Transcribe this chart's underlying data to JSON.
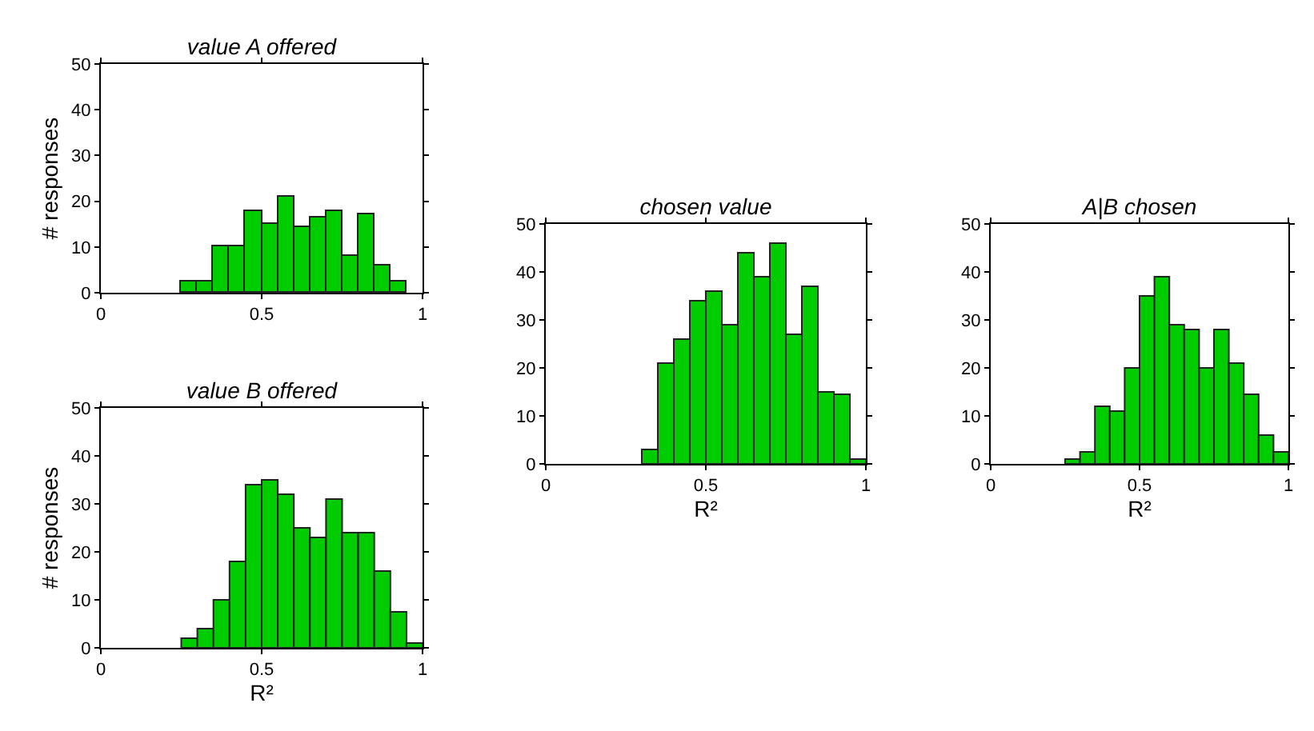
{
  "chart_data": [
    {
      "type": "histogram",
      "title": "value A offered",
      "ylabel": "# responses",
      "bins": [
        0,
        0.05,
        0.1,
        0.15,
        0.2,
        0.25,
        0.3,
        0.35,
        0.4,
        0.45,
        0.5,
        0.55,
        0.6,
        0.65,
        0.7,
        0.75,
        0.8,
        0.85,
        0.9,
        0.95,
        1
      ],
      "values": [
        0,
        0,
        0,
        0,
        0,
        2.5,
        2.5,
        10,
        10,
        18,
        15,
        21,
        14.5,
        16.5,
        18,
        8,
        17,
        6,
        2.5,
        0
      ],
      "color": "#00cc00",
      "xlim": [
        0,
        1
      ],
      "xticks": [
        0,
        0.5,
        1
      ],
      "ylim": [
        0,
        50
      ],
      "yticks": [
        0,
        10,
        20,
        30,
        40,
        50
      ]
    },
    {
      "type": "histogram",
      "title": "value B offered",
      "ylabel": "# responses",
      "xlabel": "R²",
      "bins": [
        0,
        0.05,
        0.1,
        0.15,
        0.2,
        0.25,
        0.3,
        0.35,
        0.4,
        0.45,
        0.5,
        0.55,
        0.6,
        0.65,
        0.7,
        0.75,
        0.8,
        0.85,
        0.9,
        0.95,
        1
      ],
      "values": [
        0,
        0,
        0,
        0,
        0,
        2,
        4,
        10,
        18,
        34,
        35,
        32,
        25,
        23,
        31,
        24,
        24,
        16,
        7.5,
        1
      ],
      "color": "#00cc00",
      "xlim": [
        0,
        1
      ],
      "xticks": [
        0,
        0.5,
        1
      ],
      "ylim": [
        0,
        50
      ],
      "yticks": [
        0,
        10,
        20,
        30,
        40,
        50
      ]
    },
    {
      "type": "histogram",
      "title": "chosen value",
      "xlabel": "R²",
      "bins": [
        0,
        0.05,
        0.1,
        0.15,
        0.2,
        0.25,
        0.3,
        0.35,
        0.4,
        0.45,
        0.5,
        0.55,
        0.6,
        0.65,
        0.7,
        0.75,
        0.8,
        0.85,
        0.9,
        0.95,
        1
      ],
      "values": [
        0,
        0,
        0,
        0,
        0,
        0,
        3,
        21,
        26,
        34,
        36,
        29,
        44,
        39,
        46,
        27,
        37,
        15,
        14.5,
        1
      ],
      "color": "#00cc00",
      "xlim": [
        0,
        1
      ],
      "xticks": [
        0,
        0.5,
        1
      ],
      "ylim": [
        0,
        50
      ],
      "yticks": [
        0,
        10,
        20,
        30,
        40,
        50
      ]
    },
    {
      "type": "histogram",
      "title": "A|B chosen",
      "xlabel": "R²",
      "bins": [
        0,
        0.05,
        0.1,
        0.15,
        0.2,
        0.25,
        0.3,
        0.35,
        0.4,
        0.45,
        0.5,
        0.55,
        0.6,
        0.65,
        0.7,
        0.75,
        0.8,
        0.85,
        0.9,
        0.95,
        1
      ],
      "values": [
        0,
        0,
        0,
        0,
        0,
        1,
        2.5,
        12,
        11,
        20,
        35,
        39,
        29,
        28,
        20,
        28,
        21,
        14.5,
        6,
        2.5
      ],
      "color": "#00cc00",
      "xlim": [
        0,
        1
      ],
      "xticks": [
        0,
        0.5,
        1
      ],
      "ylim": [
        0,
        50
      ],
      "yticks": [
        0,
        10,
        20,
        30,
        40,
        50
      ]
    }
  ]
}
